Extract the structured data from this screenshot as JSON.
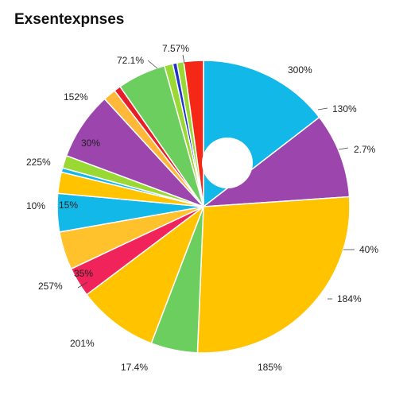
{
  "chart_data": {
    "type": "pie",
    "title": "Exsentexpnses",
    "slices": [
      {
        "label": "",
        "value": 15.5,
        "color": "#12b8e8"
      },
      {
        "label": "",
        "value": 10.0,
        "color": "#9c45ad"
      },
      {
        "label": "",
        "value": 28.5,
        "color": "#ffc300"
      },
      {
        "label": "",
        "value": 5.5,
        "color": "#6cce5e"
      },
      {
        "label": "",
        "value": 9.5,
        "color": "#ffc300"
      },
      {
        "label": "",
        "value": 3.5,
        "color": "#f0245a"
      },
      {
        "label": "",
        "value": 4.5,
        "color": "#ffc12c"
      },
      {
        "label": "",
        "value": 4.5,
        "color": "#12b8e8"
      },
      {
        "label": "",
        "value": 2.5,
        "color": "#ffc300"
      },
      {
        "label": "",
        "value": 0.5,
        "color": "#12b8e8"
      },
      {
        "label": "",
        "value": 1.5,
        "color": "#9ad834"
      },
      {
        "label": "",
        "value": 8.0,
        "color": "#9c45ad"
      },
      {
        "label": "",
        "value": 1.5,
        "color": "#ffb83a"
      },
      {
        "label": "",
        "value": 0.8,
        "color": "#e81d2a"
      },
      {
        "label": "",
        "value": 5.7,
        "color": "#6cce5e"
      },
      {
        "label": "",
        "value": 1.0,
        "color": "#9ad834"
      },
      {
        "label": "",
        "value": 0.5,
        "color": "#2233cc"
      },
      {
        "label": "",
        "value": 0.8,
        "color": "#9ad834"
      },
      {
        "label": "",
        "value": 2.3,
        "color": "#f52817"
      }
    ],
    "outer_labels": [
      "7.57%",
      "72.1%",
      "300%",
      "152%",
      "130%",
      "2.7%",
      "225%",
      "40%",
      "10%",
      "184%",
      "257%",
      "201%",
      "17.4%",
      "185%"
    ],
    "inner_labels": [
      "30%",
      "15%",
      "35%"
    ]
  }
}
